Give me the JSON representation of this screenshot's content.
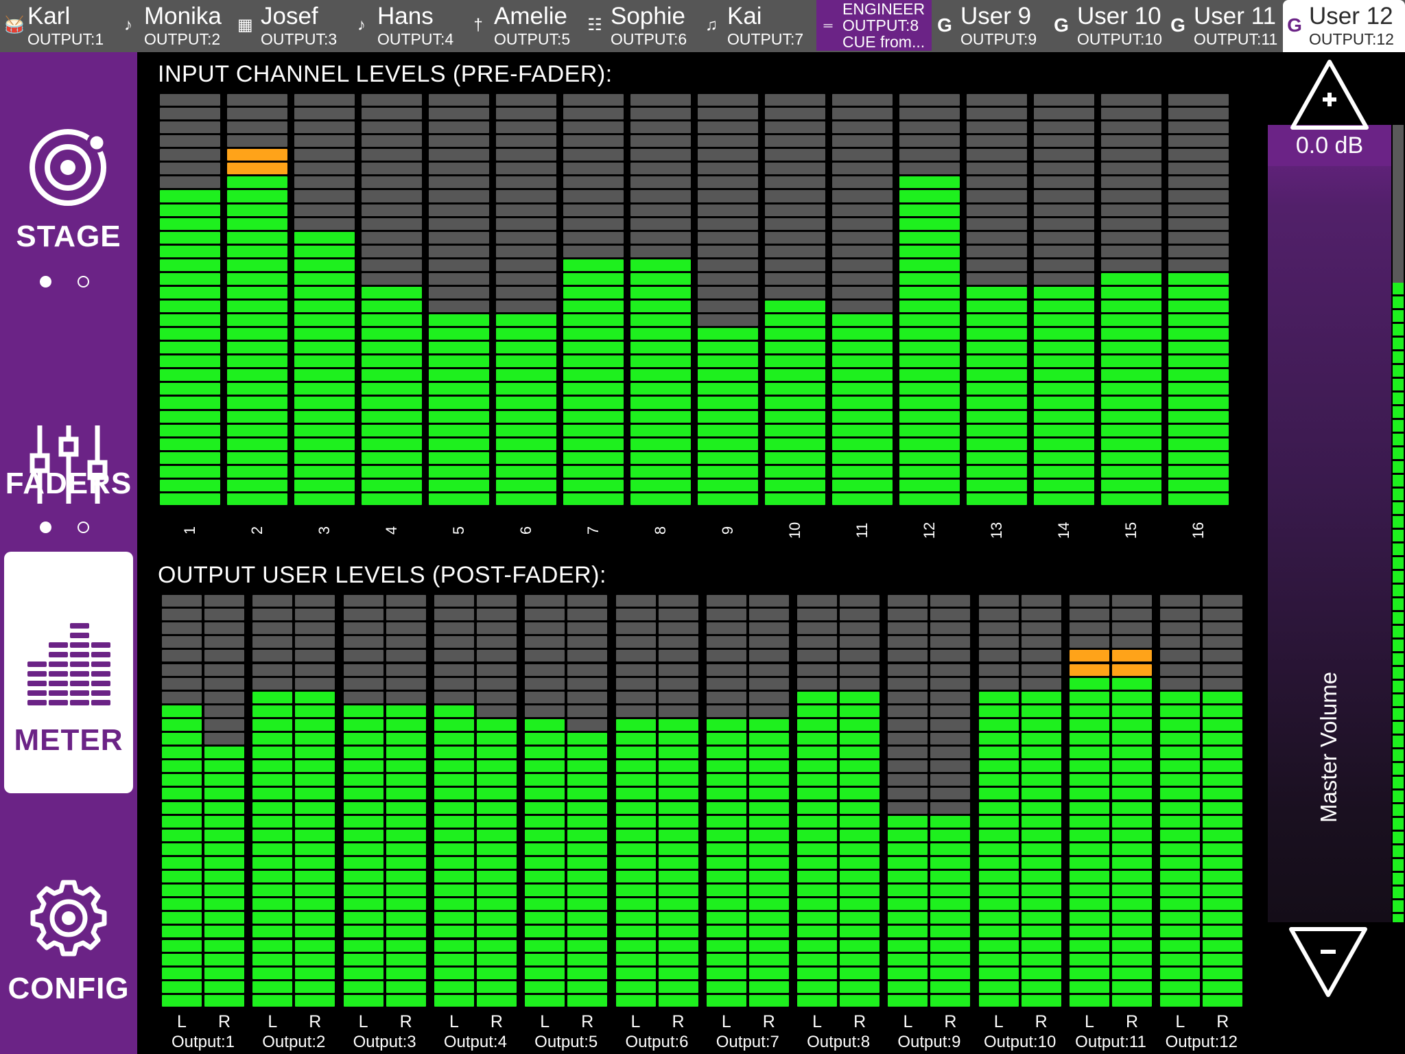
{
  "users": [
    {
      "name": "Karl",
      "output": "OUTPUT:1",
      "icon": "drum-icon"
    },
    {
      "name": "Monika",
      "output": "OUTPUT:2",
      "icon": "guitar-icon"
    },
    {
      "name": "Josef",
      "output": "OUTPUT:3",
      "icon": "keyboard-icon"
    },
    {
      "name": "Hans",
      "output": "OUTPUT:4",
      "icon": "guitar-icon"
    },
    {
      "name": "Amelie",
      "output": "OUTPUT:5",
      "icon": "microphone-icon"
    },
    {
      "name": "Sophie",
      "output": "OUTPUT:6",
      "icon": "group-icon"
    },
    {
      "name": "Kai",
      "output": "OUTPUT:7",
      "icon": "trumpet-icon"
    },
    {
      "name": "ENGINEER",
      "output": "OUTPUT:8",
      "extra": "CUE from...",
      "icon": "mixer-icon",
      "engineer": true
    },
    {
      "name": "User 9",
      "output": "OUTPUT:9",
      "icon": "g-logo-icon"
    },
    {
      "name": "User 10",
      "output": "OUTPUT:10",
      "icon": "g-logo-icon"
    },
    {
      "name": "User 11",
      "output": "OUTPUT:11",
      "icon": "g-logo-icon"
    },
    {
      "name": "User 12",
      "output": "OUTPUT:12",
      "icon": "g-logo-icon",
      "active": true
    }
  ],
  "nav": {
    "stage": "STAGE",
    "faders": "FADERS",
    "meter": "METER",
    "config": "CONFIG"
  },
  "input_title": "INPUT CHANNEL LEVELS (PRE-FADER):",
  "output_title": "OUTPUT USER LEVELS (POST-FADER):",
  "input_channels": [
    {
      "label": "1",
      "green": 23,
      "orange": 0
    },
    {
      "label": "2",
      "green": 24,
      "orange": 2
    },
    {
      "label": "3",
      "green": 20,
      "orange": 0
    },
    {
      "label": "4",
      "green": 16,
      "orange": 0
    },
    {
      "label": "5",
      "green": 14,
      "orange": 0
    },
    {
      "label": "6",
      "green": 14,
      "orange": 0
    },
    {
      "label": "7",
      "green": 18,
      "orange": 0
    },
    {
      "label": "8",
      "green": 18,
      "orange": 0
    },
    {
      "label": "9",
      "green": 13,
      "orange": 0
    },
    {
      "label": "10",
      "green": 15,
      "orange": 0
    },
    {
      "label": "11",
      "green": 14,
      "orange": 0
    },
    {
      "label": "12",
      "green": 24,
      "orange": 0
    },
    {
      "label": "13",
      "green": 16,
      "orange": 0
    },
    {
      "label": "14",
      "green": 16,
      "orange": 0
    },
    {
      "label": "15",
      "green": 17,
      "orange": 0
    },
    {
      "label": "16",
      "green": 17,
      "orange": 0
    }
  ],
  "input_segments_total": 30,
  "output_segments_total": 30,
  "outputs": [
    {
      "label": "Output:1",
      "left": {
        "green": 22,
        "orange": 0
      },
      "right": {
        "green": 19,
        "orange": 0
      }
    },
    {
      "label": "Output:2",
      "left": {
        "green": 23,
        "orange": 0
      },
      "right": {
        "green": 23,
        "orange": 0
      }
    },
    {
      "label": "Output:3",
      "left": {
        "green": 22,
        "orange": 0
      },
      "right": {
        "green": 22,
        "orange": 0
      }
    },
    {
      "label": "Output:4",
      "left": {
        "green": 22,
        "orange": 0
      },
      "right": {
        "green": 21,
        "orange": 0
      }
    },
    {
      "label": "Output:5",
      "left": {
        "green": 21,
        "orange": 0
      },
      "right": {
        "green": 20,
        "orange": 0
      }
    },
    {
      "label": "Output:6",
      "left": {
        "green": 21,
        "orange": 0
      },
      "right": {
        "green": 21,
        "orange": 0
      }
    },
    {
      "label": "Output:7",
      "left": {
        "green": 21,
        "orange": 0
      },
      "right": {
        "green": 21,
        "orange": 0
      }
    },
    {
      "label": "Output:8",
      "left": {
        "green": 23,
        "orange": 0
      },
      "right": {
        "green": 23,
        "orange": 0
      }
    },
    {
      "label": "Output:9",
      "left": {
        "green": 14,
        "orange": 0
      },
      "right": {
        "green": 14,
        "orange": 0
      }
    },
    {
      "label": "Output:10",
      "left": {
        "green": 23,
        "orange": 0
      },
      "right": {
        "green": 23,
        "orange": 0
      }
    },
    {
      "label": "Output:11",
      "left": {
        "green": 24,
        "orange": 2
      },
      "right": {
        "green": 24,
        "orange": 2
      }
    },
    {
      "label": "Output:12",
      "left": {
        "green": 23,
        "orange": 0
      },
      "right": {
        "green": 23,
        "orange": 0
      }
    }
  ],
  "lr_labels": {
    "left": "L",
    "right": "R"
  },
  "master": {
    "label": "Master Volume",
    "value": "0.0 dB"
  },
  "colors": {
    "accent": "#6b2386",
    "meter_green": "#1ef01e",
    "meter_orange": "#ffa319",
    "meter_off": "#575757",
    "topbar": "#565656"
  }
}
